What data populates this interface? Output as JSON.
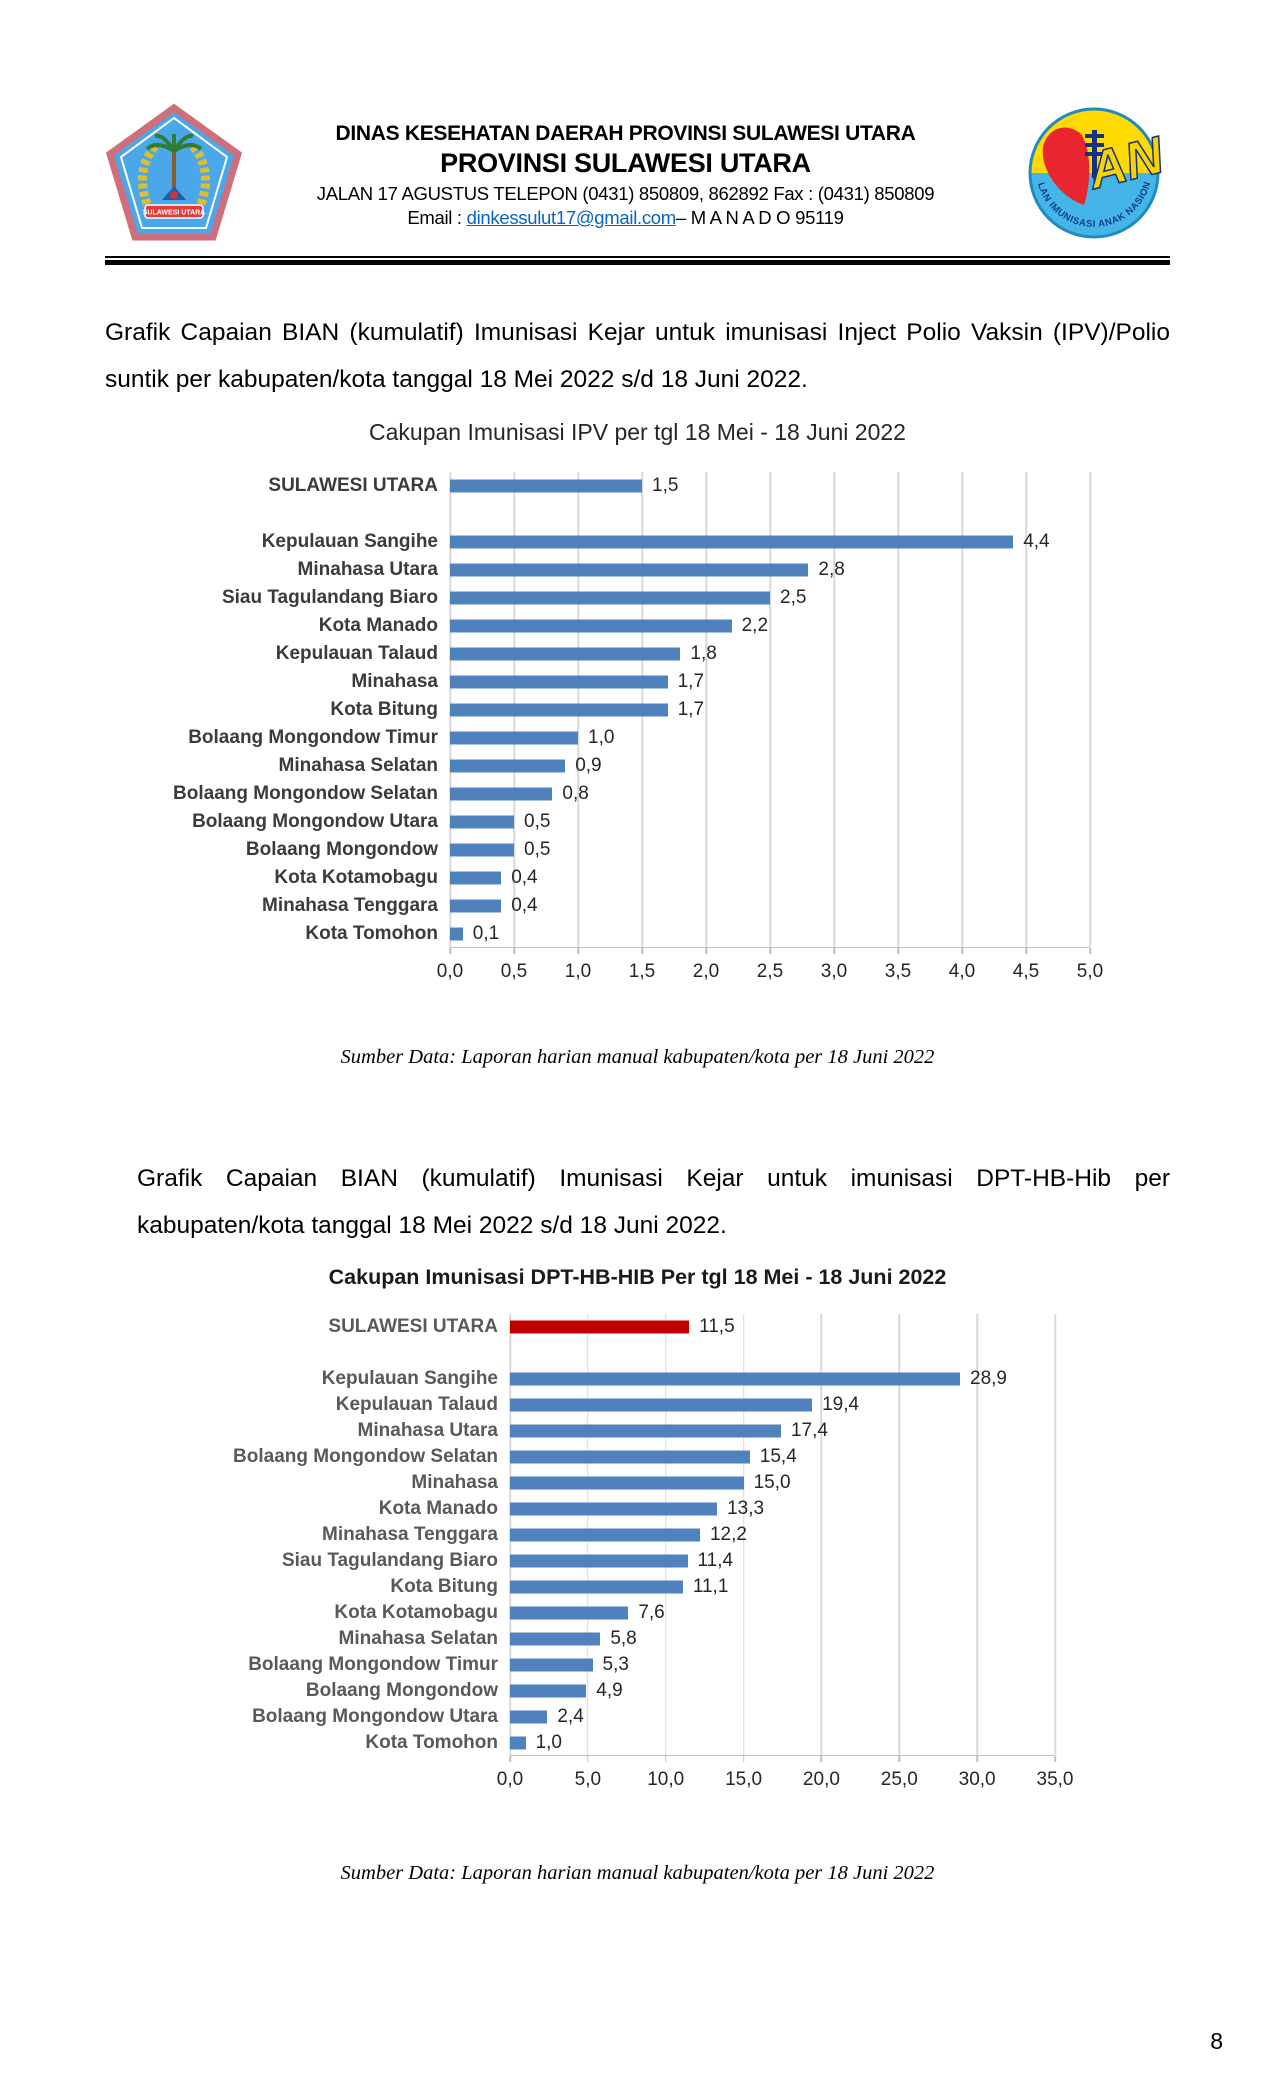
{
  "header": {
    "line1": "DINAS KESEHATAN DAERAH PROVINSI SULAWESI UTARA",
    "line2": "PROVINSI SULAWESI UTARA",
    "line3": "JALAN 17 AGUSTUS TELEPON (0431) 850809, 862892 Fax : (0431) 850809",
    "email_label": "Email : ",
    "email": "dinkessulut17@gmail.com",
    "email_suffix": "– M A N A D O 95119",
    "left_logo_banner": "SULAWESI UTARA",
    "right_logo_letters": "AN",
    "right_logo_text": "BULAN IMUNISASI ANAK NASIONAL"
  },
  "paragraph1": "Grafik Capaian BIAN (kumulatif) Imunisasi Kejar untuk imunisasi Inject Polio Vaksin (IPV)/Polio suntik per kabupaten/kota tanggal 18 Mei 2022 s/d 18 Juni 2022.",
  "paragraph2": "Grafik Capaian BIAN (kumulatif) Imunisasi Kejar untuk imunisasi DPT-HB-Hib per kabupaten/kota tanggal 18 Mei 2022 s/d 18 Juni 2022.",
  "source1": "Sumber Data: Laporan harian manual kabupaten/kota per 18  Juni 2022",
  "source2": "Sumber Data: Laporan harian manual kabupaten/kota per 18 Juni 2022",
  "page_number": "8",
  "colors": {
    "bar_blue": "#4f81bd",
    "bar_red": "#c00000",
    "gridline": "#d9d9d9",
    "axis_line": "#bfbfbf",
    "email_link": "#0563c1"
  },
  "chart_data": [
    {
      "type": "bar",
      "orientation": "horizontal",
      "title": "Cakupan Imunisasi IPV per tgl 18 Mei - 18 Juni 2022",
      "xlabel": "",
      "ylabel": "",
      "xlim": [
        0,
        5
      ],
      "grid": true,
      "legend": "none",
      "bar_color": "#4f81bd",
      "x_ticks": [
        "0,0",
        "0,5",
        "1,0",
        "1,5",
        "2,0",
        "2,5",
        "3,0",
        "3,5",
        "4,0",
        "4,5",
        "5,0"
      ],
      "rows": [
        {
          "label": "SULAWESI UTARA",
          "value": 1.5,
          "display": "1,5"
        },
        {
          "gap": true
        },
        {
          "label": "Kepulauan Sangihe",
          "value": 4.4,
          "display": "4,4"
        },
        {
          "label": "Minahasa Utara",
          "value": 2.8,
          "display": "2,8"
        },
        {
          "label": "Siau Tagulandang Biaro",
          "value": 2.5,
          "display": "2,5"
        },
        {
          "label": "Kota Manado",
          "value": 2.2,
          "display": "2,2"
        },
        {
          "label": "Kepulauan Talaud",
          "value": 1.8,
          "display": "1,8"
        },
        {
          "label": "Minahasa",
          "value": 1.7,
          "display": "1,7"
        },
        {
          "label": "Kota Bitung",
          "value": 1.7,
          "display": "1,7"
        },
        {
          "label": "Bolaang Mongondow Timur",
          "value": 1.0,
          "display": "1,0"
        },
        {
          "label": "Minahasa Selatan",
          "value": 0.9,
          "display": "0,9"
        },
        {
          "label": "Bolaang Mongondow Selatan",
          "value": 0.8,
          "display": "0,8"
        },
        {
          "label": "Bolaang Mongondow Utara",
          "value": 0.5,
          "display": "0,5"
        },
        {
          "label": "Bolaang Mongondow",
          "value": 0.5,
          "display": "0,5"
        },
        {
          "label": "Kota Kotamobagu",
          "value": 0.4,
          "display": "0,4"
        },
        {
          "label": "Minahasa Tenggara",
          "value": 0.4,
          "display": "0,4"
        },
        {
          "label": "Kota Tomohon",
          "value": 0.1,
          "display": "0,1"
        }
      ]
    },
    {
      "type": "bar",
      "orientation": "horizontal",
      "title": "Cakupan Imunisasi DPT-HB-HIB Per tgl 18 Mei - 18 Juni 2022",
      "xlabel": "",
      "ylabel": "",
      "xlim": [
        0,
        35
      ],
      "grid": true,
      "legend": "none",
      "bar_color": "#4f81bd",
      "x_ticks": [
        "0,0",
        "5,0",
        "10,0",
        "15,0",
        "20,0",
        "25,0",
        "30,0",
        "35,0"
      ],
      "rows": [
        {
          "label": "SULAWESI UTARA",
          "value": 11.5,
          "display": "11,5",
          "color": "#c00000"
        },
        {
          "gap": true
        },
        {
          "label": "Kepulauan Sangihe",
          "value": 28.9,
          "display": "28,9"
        },
        {
          "label": "Kepulauan Talaud",
          "value": 19.4,
          "display": "19,4"
        },
        {
          "label": "Minahasa Utara",
          "value": 17.4,
          "display": "17,4"
        },
        {
          "label": "Bolaang Mongondow Selatan",
          "value": 15.4,
          "display": "15,4"
        },
        {
          "label": "Minahasa",
          "value": 15.0,
          "display": "15,0"
        },
        {
          "label": "Kota Manado",
          "value": 13.3,
          "display": "13,3"
        },
        {
          "label": "Minahasa Tenggara",
          "value": 12.2,
          "display": "12,2"
        },
        {
          "label": "Siau Tagulandang Biaro",
          "value": 11.4,
          "display": "11,4"
        },
        {
          "label": "Kota Bitung",
          "value": 11.1,
          "display": "11,1"
        },
        {
          "label": "Kota Kotamobagu",
          "value": 7.6,
          "display": "7,6"
        },
        {
          "label": "Minahasa Selatan",
          "value": 5.8,
          "display": "5,8"
        },
        {
          "label": "Bolaang Mongondow Timur",
          "value": 5.3,
          "display": "5,3"
        },
        {
          "label": "Bolaang Mongondow",
          "value": 4.9,
          "display": "4,9"
        },
        {
          "label": "Bolaang Mongondow Utara",
          "value": 2.4,
          "display": "2,4"
        },
        {
          "label": "Kota Tomohon",
          "value": 1.0,
          "display": "1,0"
        }
      ]
    }
  ]
}
